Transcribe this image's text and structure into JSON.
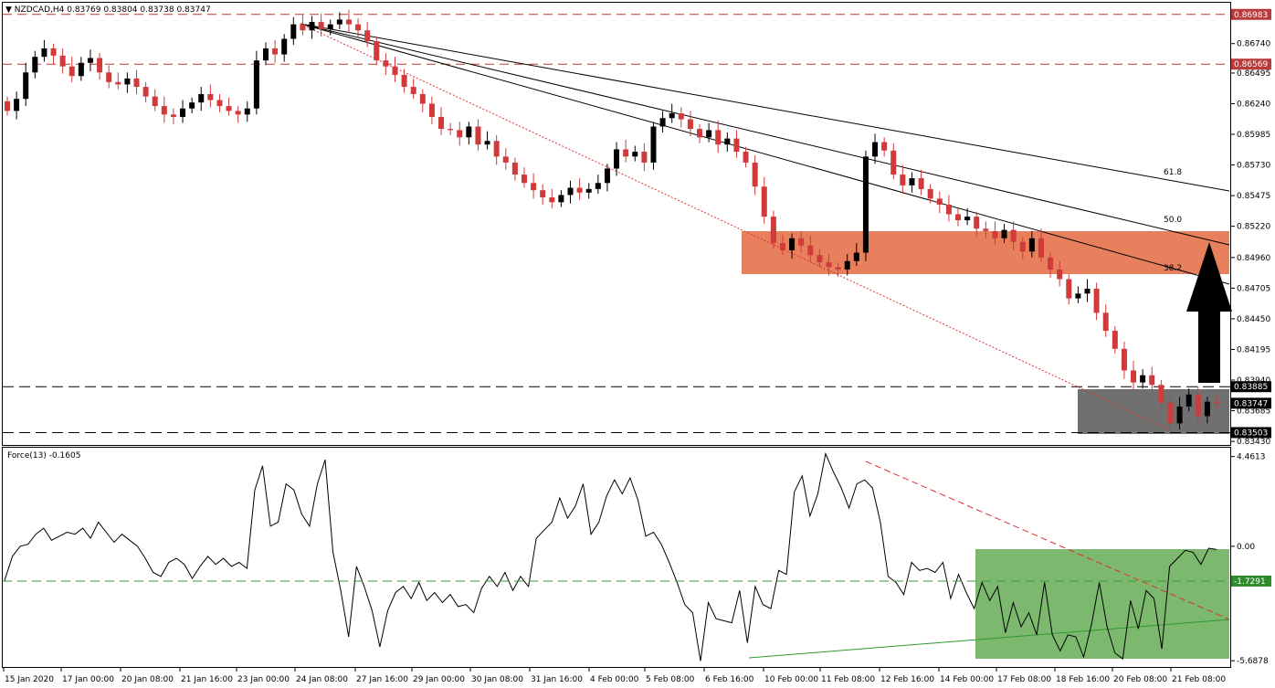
{
  "colors": {
    "bull": "#000000",
    "bear": "#d03a3a",
    "resistance_zone": "#e8805e",
    "support_zone": "#707070",
    "force_zone": "#7db86f",
    "hline_red": "#c0392b",
    "hline_green": "#3a9a3a",
    "trend_red": "#e03030",
    "trend_green": "#2e9a2e",
    "arrow": "#000000"
  },
  "chart_data": [
    {
      "type": "candlestick",
      "symbol": "NZDCAD,H4",
      "ohlc_header": "0.83769 0.83804 0.83738 0.83747",
      "ylim": [
        0.834,
        0.8708
      ],
      "y_ticks": [
        "0.86740",
        "0.86495",
        "0.86240",
        "0.85985",
        "0.85730",
        "0.85475",
        "0.85220",
        "0.84960",
        "0.84705",
        "0.84450",
        "0.84195",
        "0.83940",
        "0.83685",
        "0.83430"
      ],
      "y_tick_values": [
        0.8674,
        0.86495,
        0.8624,
        0.85985,
        0.8573,
        0.85475,
        0.8522,
        0.8496,
        0.84705,
        0.8445,
        0.84195,
        0.8394,
        0.83685,
        0.8343
      ],
      "levels": [
        {
          "label": "0.86983",
          "value": 0.86983,
          "style": "red-dashed"
        },
        {
          "label": "0.86569",
          "value": 0.86569,
          "style": "red-dashed"
        },
        {
          "label": "0.83885",
          "value": 0.83885,
          "style": "black-dashed"
        },
        {
          "label": "0.83503",
          "value": 0.83503,
          "style": "black-dashed"
        }
      ],
      "current_price_label": "0.83747",
      "fib_labels": [
        "61.8",
        "50.0",
        "38.2"
      ],
      "x_tick_labels": [
        "15 Jan 2020",
        "17 Jan 00:00",
        "20 Jan 08:00",
        "21 Jan 16:00",
        "23 Jan 00:00",
        "24 Jan 08:00",
        "27 Jan 16:00",
        "29 Jan 00:00",
        "30 Jan 08:00",
        "31 Jan 16:00",
        "4 Feb 00:00",
        "5 Feb 08:00",
        "6 Feb 16:00",
        "10 Feb 00:00",
        "11 Feb 08:00",
        "12 Feb 16:00",
        "14 Feb 00:00",
        "17 Feb 08:00",
        "18 Feb 16:00",
        "20 Feb 08:00",
        "21 Feb 08:00"
      ],
      "close_path": [
        0.8618,
        0.8628,
        0.865,
        0.8663,
        0.867,
        0.8664,
        0.8655,
        0.8647,
        0.8658,
        0.8662,
        0.865,
        0.8642,
        0.864,
        0.8645,
        0.8638,
        0.863,
        0.8622,
        0.8615,
        0.8613,
        0.862,
        0.8625,
        0.8632,
        0.8627,
        0.8622,
        0.8618,
        0.8615,
        0.862,
        0.866,
        0.867,
        0.8665,
        0.8678,
        0.869,
        0.8685,
        0.8692,
        0.8686,
        0.869,
        0.8694,
        0.869,
        0.8685,
        0.8676,
        0.866,
        0.8655,
        0.8648,
        0.8638,
        0.8632,
        0.8624,
        0.8613,
        0.8603,
        0.8602,
        0.8596,
        0.8605,
        0.859,
        0.8593,
        0.858,
        0.8575,
        0.8565,
        0.8558,
        0.8552,
        0.8546,
        0.8542,
        0.8548,
        0.8554,
        0.855,
        0.8553,
        0.8558,
        0.857,
        0.8586,
        0.858,
        0.8584,
        0.8575,
        0.8605,
        0.8612,
        0.8616,
        0.8611,
        0.8603,
        0.8596,
        0.8602,
        0.859,
        0.8595,
        0.8584,
        0.8575,
        0.8555,
        0.853,
        0.8508,
        0.8502,
        0.8512,
        0.8506,
        0.8498,
        0.8492,
        0.8488,
        0.8486,
        0.8493,
        0.85,
        0.858,
        0.8592,
        0.8585,
        0.8565,
        0.8556,
        0.8562,
        0.8553,
        0.8545,
        0.854,
        0.8532,
        0.8527,
        0.853,
        0.852,
        0.8518,
        0.8512,
        0.8519,
        0.8509,
        0.8501,
        0.8512,
        0.8496,
        0.8486,
        0.8478,
        0.8462,
        0.8466,
        0.847,
        0.845,
        0.8435,
        0.842,
        0.8402,
        0.8392,
        0.8398,
        0.839,
        0.8375,
        0.8358,
        0.8372,
        0.8382,
        0.8364,
        0.8376,
        0.8375
      ],
      "panel": "price"
    },
    {
      "type": "line",
      "indicator": "Force(13)",
      "current_value": "-0.1605",
      "ylim": [
        -6.0,
        4.9
      ],
      "y_ticks": [
        "4.4613",
        "0.00",
        "-5.6878"
      ],
      "y_tick_values": [
        4.4613,
        0.0,
        -5.6878
      ],
      "level": {
        "label": "-1.7291",
        "value": -1.7291
      },
      "values": [
        -1.7,
        -0.5,
        0.0,
        0.1,
        0.6,
        0.9,
        0.3,
        0.5,
        0.7,
        0.6,
        0.9,
        0.4,
        1.2,
        0.7,
        0.2,
        0.6,
        0.3,
        0.0,
        -0.6,
        -1.3,
        -1.5,
        -0.8,
        -0.6,
        -0.9,
        -1.6,
        -1.0,
        -0.5,
        -0.9,
        -0.6,
        -1.0,
        -0.8,
        -1.1,
        2.8,
        4.0,
        1.0,
        1.2,
        3.1,
        2.8,
        1.6,
        1.0,
        3.1,
        4.3,
        -0.3,
        -2.2,
        -4.5,
        -1.0,
        -2.0,
        -3.2,
        -5.0,
        -3.2,
        -2.3,
        -2.0,
        -2.6,
        -1.8,
        -2.7,
        -2.3,
        -2.8,
        -2.4,
        -3.0,
        -2.9,
        -3.3,
        -2.1,
        -1.5,
        -2.0,
        -1.3,
        -2.2,
        -1.5,
        -2.0,
        0.4,
        0.8,
        1.2,
        2.4,
        1.4,
        2.0,
        3.1,
        0.6,
        1.2,
        2.5,
        3.3,
        2.6,
        3.4,
        2.3,
        0.5,
        0.7,
        0.1,
        -0.8,
        -1.8,
        -2.9,
        -3.3,
        -5.7,
        -2.8,
        -3.6,
        -3.7,
        -3.8,
        -2.2,
        -4.8,
        -2.0,
        -2.9,
        -3.1,
        -1.2,
        -1.4,
        2.7,
        3.5,
        1.5,
        2.6,
        4.6,
        3.7,
        2.9,
        1.9,
        3.1,
        3.3,
        2.9,
        1.2,
        -1.5,
        -1.8,
        -2.4,
        -0.8,
        -1.2,
        -1.1,
        -1.3,
        -0.8,
        -2.6,
        -1.4,
        -2.3,
        -3.1,
        -1.8,
        -2.7,
        -2.0,
        -4.3,
        -2.8,
        -4.0,
        -3.3,
        -4.4,
        -1.8,
        -4.4,
        -5.2,
        -4.4,
        -4.5,
        -5.5,
        -3.9,
        -1.8,
        -4.0,
        -5.3,
        -5.6,
        -2.7,
        -4.1,
        -2.2,
        -2.6,
        -5.1,
        -1.0,
        -0.6,
        -0.2,
        -0.3,
        -0.9,
        -0.1,
        -0.16
      ],
      "panel": "indicator"
    }
  ]
}
